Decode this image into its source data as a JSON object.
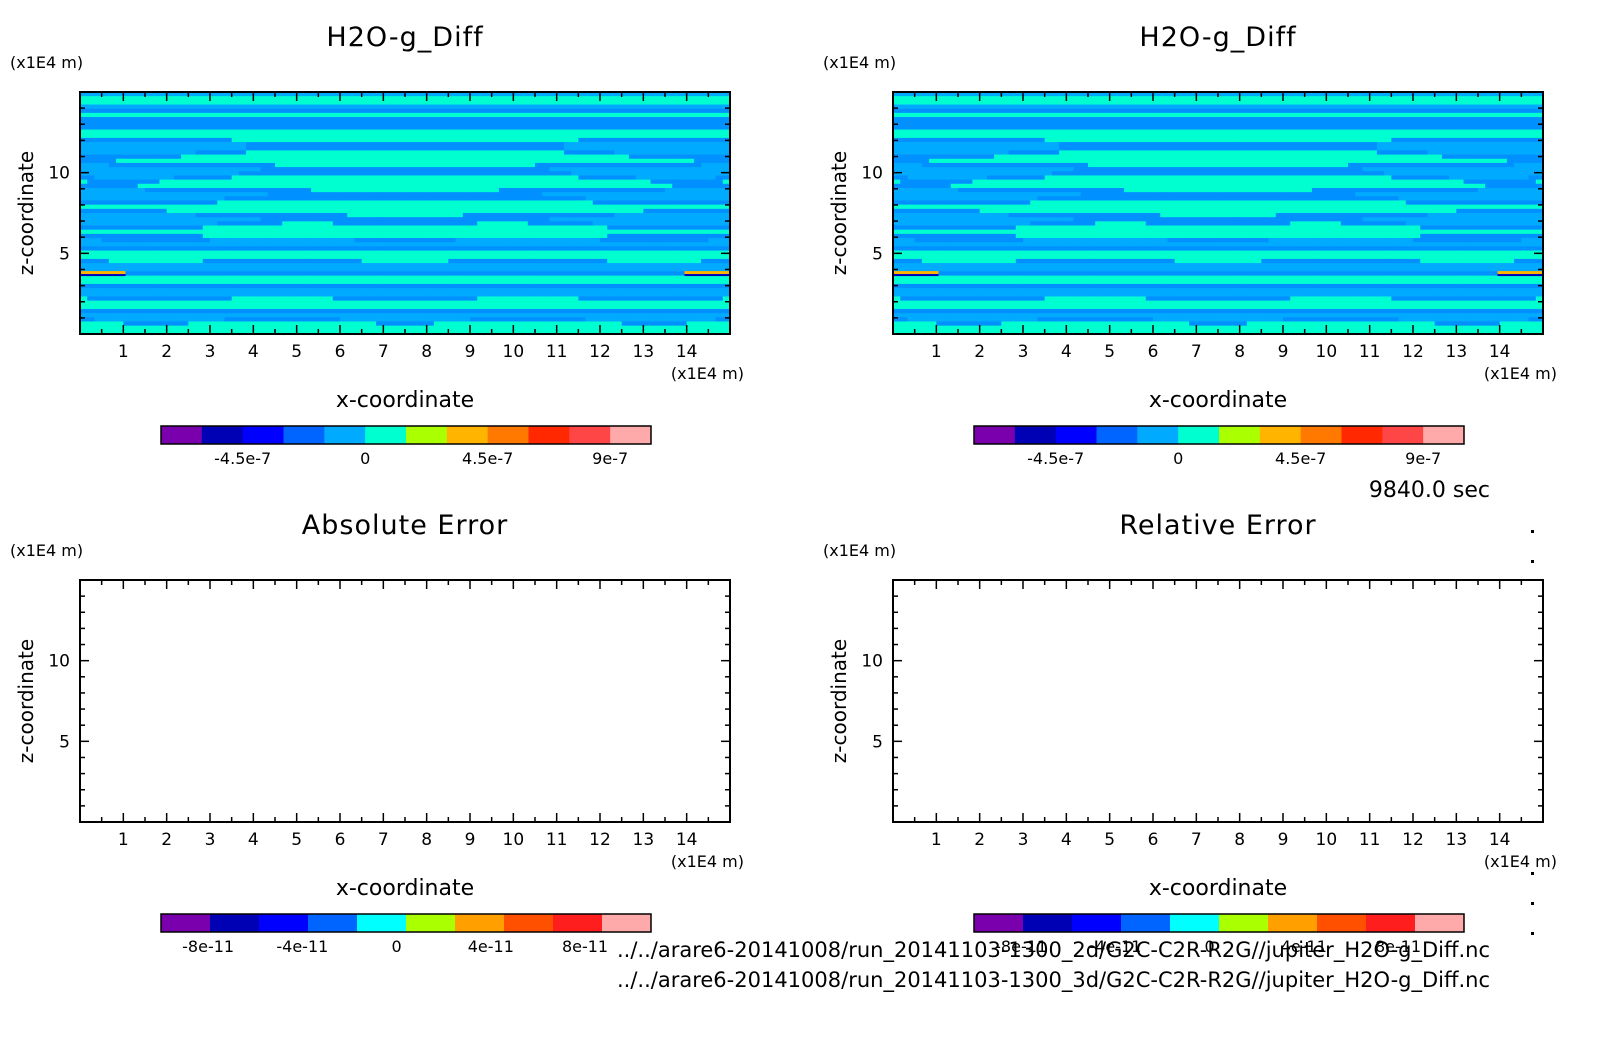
{
  "time_label": "9840.0 sec",
  "files": [
    "../../arare6-20141008/run_20141103-1300_2d/G2C-C2R-R2G//jupiter_H2O-g_Diff.nc",
    "../../arare6-20141008/run_20141103-1300_3d/G2C-C2R-R2G//jupiter_H2O-g_Diff.nc"
  ],
  "chart_data": [
    {
      "type": "heatmap",
      "title": "H2O-g_Diff",
      "xlabel": "x-coordinate",
      "ylabel": "z-coordinate",
      "x_unit": "(x1E4 m)",
      "y_unit": "(x1E4 m)",
      "xlim": [
        0,
        15
      ],
      "ylim": [
        0,
        15
      ],
      "xticks": [
        1,
        2,
        3,
        4,
        5,
        6,
        7,
        8,
        9,
        10,
        11,
        12,
        13,
        14
      ],
      "yticks": [
        5,
        10
      ],
      "colorbar": {
        "colors": [
          "#7b00ad",
          "#0000b4",
          "#0000ff",
          "#0064ff",
          "#00aaff",
          "#00ffd0",
          "#aaff00",
          "#ffb400",
          "#ff7800",
          "#ff2800",
          "#ff4646",
          "#ffaaaa"
        ],
        "ticks": [
          "-4.5e-7",
          "0",
          "4.5e-7",
          "9e-7"
        ]
      }
    },
    {
      "type": "heatmap",
      "title": "H2O-g_Diff",
      "xlabel": "x-coordinate",
      "ylabel": "z-coordinate",
      "x_unit": "(x1E4 m)",
      "y_unit": "(x1E4 m)",
      "xlim": [
        0,
        15
      ],
      "ylim": [
        0,
        15
      ],
      "xticks": [
        1,
        2,
        3,
        4,
        5,
        6,
        7,
        8,
        9,
        10,
        11,
        12,
        13,
        14
      ],
      "yticks": [
        5,
        10
      ],
      "colorbar": {
        "colors": [
          "#7b00ad",
          "#0000b4",
          "#0000ff",
          "#0064ff",
          "#00aaff",
          "#00ffd0",
          "#aaff00",
          "#ffb400",
          "#ff7800",
          "#ff2800",
          "#ff4646",
          "#ffaaaa"
        ],
        "ticks": [
          "-4.5e-7",
          "0",
          "4.5e-7",
          "9e-7"
        ]
      }
    },
    {
      "type": "heatmap",
      "title": "Absolute Error",
      "xlabel": "x-coordinate",
      "ylabel": "z-coordinate",
      "x_unit": "(x1E4 m)",
      "y_unit": "(x1E4 m)",
      "xlim": [
        0,
        15
      ],
      "ylim": [
        0,
        15
      ],
      "xticks": [
        1,
        2,
        3,
        4,
        5,
        6,
        7,
        8,
        9,
        10,
        11,
        12,
        13,
        14
      ],
      "yticks": [
        5,
        10
      ],
      "colorbar": {
        "colors": [
          "#7b00ad",
          "#0000b4",
          "#0000ff",
          "#0064ff",
          "#00ffff",
          "#aaff00",
          "#ffa000",
          "#ff5000",
          "#ff1e1e",
          "#ffaaaa"
        ],
        "ticks": [
          "-8e-11",
          "-4e-11",
          "0",
          "4e-11",
          "8e-11"
        ]
      }
    },
    {
      "type": "heatmap",
      "title": "Relative Error",
      "xlabel": "x-coordinate",
      "ylabel": "z-coordinate",
      "x_unit": "(x1E4 m)",
      "y_unit": "(x1E4 m)",
      "xlim": [
        0,
        15
      ],
      "ylim": [
        0,
        15
      ],
      "xticks": [
        1,
        2,
        3,
        4,
        5,
        6,
        7,
        8,
        9,
        10,
        11,
        12,
        13,
        14
      ],
      "yticks": [
        5,
        10
      ],
      "colorbar": {
        "colors": [
          "#7b00ad",
          "#0000b4",
          "#0000ff",
          "#0064ff",
          "#00ffff",
          "#aaff00",
          "#ffa000",
          "#ff5000",
          "#ff1e1e",
          "#ffaaaa"
        ],
        "ticks": [
          "-8e-11",
          "-4e-11",
          "0",
          "4e-11",
          "8e-11"
        ]
      }
    }
  ]
}
